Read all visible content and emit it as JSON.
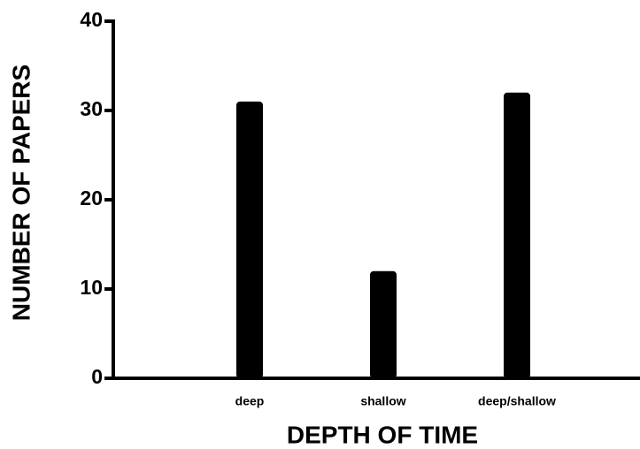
{
  "chart_data": {
    "type": "bar",
    "xlabel": "DEPTH OF TIME",
    "ylabel": "NUMBER OF PAPERS",
    "categories": [
      "deep",
      "shallow",
      "deep/shallow"
    ],
    "values": [
      31,
      12,
      32
    ],
    "color": "#000000",
    "ylim": [
      0,
      40
    ],
    "yticks": [
      0,
      10,
      20,
      30,
      40
    ],
    "grid": false
  }
}
